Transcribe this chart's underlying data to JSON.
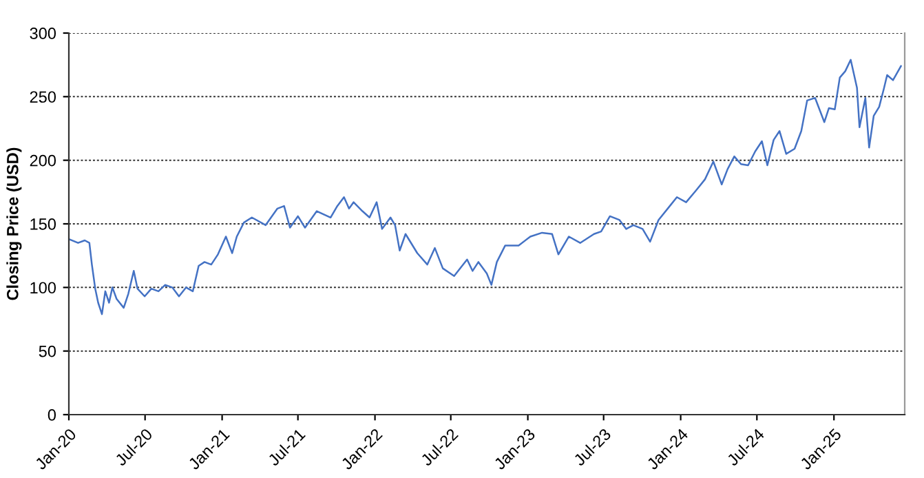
{
  "chart_data": {
    "type": "line",
    "ylabel": "Closing Price (USD)",
    "x": [
      "2020-01-01",
      "2020-01-23",
      "2020-02-08",
      "2020-02-19",
      "2020-02-25",
      "2020-03-04",
      "2020-03-11",
      "2020-03-20",
      "2020-03-28",
      "2020-04-06",
      "2020-04-14",
      "2020-04-24",
      "2020-05-11",
      "2020-05-22",
      "2020-06-04",
      "2020-06-13",
      "2020-06-30",
      "2020-07-16",
      "2020-08-02",
      "2020-08-18",
      "2020-09-04",
      "2020-09-20",
      "2020-10-07",
      "2020-10-23",
      "2020-11-06",
      "2020-11-20",
      "2020-12-06",
      "2020-12-22",
      "2021-01-10",
      "2021-01-25",
      "2021-02-05",
      "2021-02-22",
      "2021-03-13",
      "2021-04-15",
      "2021-05-13",
      "2021-05-29",
      "2021-06-12",
      "2021-07-01",
      "2021-07-18",
      "2021-08-15",
      "2021-09-17",
      "2021-10-03",
      "2021-10-19",
      "2021-10-31",
      "2021-11-11",
      "2021-12-02",
      "2021-12-19",
      "2022-01-05",
      "2022-01-18",
      "2022-02-07",
      "2022-02-18",
      "2022-03-01",
      "2022-03-15",
      "2022-04-12",
      "2022-05-06",
      "2022-05-24",
      "2022-06-12",
      "2022-07-09",
      "2022-08-09",
      "2022-08-22",
      "2022-09-05",
      "2022-09-25",
      "2022-10-06",
      "2022-10-19",
      "2022-11-08",
      "2022-12-10",
      "2023-01-07",
      "2023-02-04",
      "2023-02-28",
      "2023-03-15",
      "2023-04-09",
      "2023-05-06",
      "2023-06-08",
      "2023-06-25",
      "2023-07-16",
      "2023-08-08",
      "2023-08-24",
      "2023-09-10",
      "2023-10-02",
      "2023-10-20",
      "2023-11-09",
      "2023-12-06",
      "2023-12-23",
      "2024-01-14",
      "2024-02-06",
      "2024-02-28",
      "2024-03-19",
      "2024-04-08",
      "2024-04-22",
      "2024-05-08",
      "2024-05-24",
      "2024-06-10",
      "2024-06-27",
      "2024-07-13",
      "2024-07-26",
      "2024-08-10",
      "2024-08-24",
      "2024-09-09",
      "2024-09-29",
      "2024-10-15",
      "2024-10-29",
      "2024-11-17",
      "2024-12-09",
      "2024-12-20",
      "2025-01-03",
      "2025-01-15",
      "2025-01-28",
      "2025-02-10",
      "2025-02-25",
      "2025-03-03",
      "2025-03-17",
      "2025-03-26",
      "2025-04-06",
      "2025-04-19",
      "2025-04-30",
      "2025-05-08",
      "2025-05-22",
      "2025-06-10"
    ],
    "series": [
      {
        "color": "#4472c4",
        "values": [
          138,
          135,
          137,
          135,
          118,
          99,
          88,
          79,
          97,
          88,
          100,
          91,
          84,
          95,
          113,
          99,
          93,
          99,
          97,
          102,
          100,
          93,
          100,
          97,
          117,
          120,
          118,
          126,
          140,
          127,
          140,
          151,
          155,
          149,
          162,
          164,
          147,
          156,
          147,
          160,
          155,
          164,
          171,
          162,
          167,
          160,
          155,
          167,
          146,
          155,
          149,
          129,
          142,
          127,
          118,
          131,
          115,
          109,
          122,
          113,
          120,
          111,
          102,
          120,
          133,
          133,
          140,
          143,
          142,
          126,
          140,
          135,
          142,
          144,
          156,
          153,
          146,
          149,
          146,
          136,
          153,
          164,
          171,
          167,
          176,
          185,
          199,
          181,
          193,
          203,
          197,
          196,
          207,
          215,
          196,
          216,
          223,
          205,
          209,
          223,
          247,
          249,
          230,
          241,
          240,
          265,
          270,
          279,
          257,
          226,
          249,
          210,
          235,
          242,
          256,
          267,
          263,
          274
        ]
      }
    ],
    "xlim": [
      "2020-01-01",
      "2025-06-19"
    ],
    "xticks": [
      {
        "value": "2020-01-01",
        "label": "Jan-20"
      },
      {
        "value": "2020-07-01",
        "label": "Jul-20"
      },
      {
        "value": "2021-01-01",
        "label": "Jan-21"
      },
      {
        "value": "2021-07-01",
        "label": "Jul-21"
      },
      {
        "value": "2022-01-01",
        "label": "Jan-22"
      },
      {
        "value": "2022-07-01",
        "label": "Jul-22"
      },
      {
        "value": "2023-01-01",
        "label": "Jan-23"
      },
      {
        "value": "2023-07-01",
        "label": "Jul-23"
      },
      {
        "value": "2024-01-01",
        "label": "Jan-24"
      },
      {
        "value": "2024-07-01",
        "label": "Jul-24"
      },
      {
        "value": "2025-01-01",
        "label": "Jan-25"
      }
    ],
    "ylim": [
      0,
      300
    ],
    "yticks": [
      0,
      50,
      100,
      150,
      200,
      250,
      300
    ],
    "grid": "y",
    "marker": "none",
    "line_style": "solid"
  }
}
